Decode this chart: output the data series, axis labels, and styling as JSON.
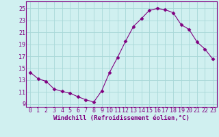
{
  "x": [
    0,
    1,
    2,
    3,
    4,
    5,
    6,
    7,
    8,
    9,
    10,
    11,
    12,
    13,
    14,
    15,
    16,
    17,
    18,
    19,
    20,
    21,
    22,
    23
  ],
  "y": [
    14.3,
    13.2,
    12.8,
    11.5,
    11.1,
    10.8,
    10.2,
    9.7,
    9.3,
    11.2,
    14.3,
    16.8,
    19.5,
    22.0,
    23.3,
    24.7,
    25.0,
    24.8,
    24.3,
    22.3,
    21.5,
    19.4,
    18.2,
    16.5
  ],
  "line_color": "#800080",
  "marker": "D",
  "marker_size": 2.5,
  "bg_color": "#d0f0f0",
  "grid_color": "#a8d8d8",
  "xlabel": "Windchill (Refroidissement éolien,°C)",
  "ylabel": "",
  "ylim": [
    8.5,
    26.2
  ],
  "yticks": [
    9,
    11,
    13,
    15,
    17,
    19,
    21,
    23,
    25
  ],
  "xlim": [
    -0.5,
    23.5
  ],
  "xticks": [
    0,
    1,
    2,
    3,
    4,
    5,
    6,
    7,
    8,
    9,
    10,
    11,
    12,
    13,
    14,
    15,
    16,
    17,
    18,
    19,
    20,
    21,
    22,
    23
  ],
  "xlabel_fontsize": 6.5,
  "tick_fontsize": 6.0,
  "spine_color": "#800080",
  "axis_label_color": "#800080"
}
